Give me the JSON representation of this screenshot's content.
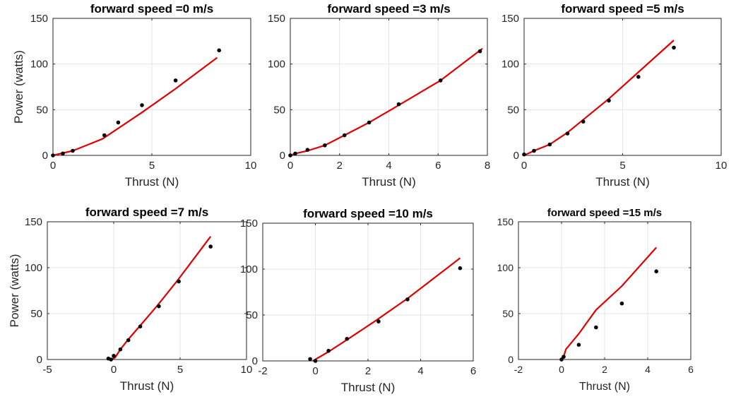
{
  "chart_data": [
    {
      "type": "line",
      "title": "forward speed  =0 m/s",
      "xlabel": "Thrust (N)",
      "ylabel": "Power (watts)",
      "xlim": [
        0,
        10
      ],
      "ylim": [
        0,
        150
      ],
      "xticks": [
        0,
        5,
        10
      ],
      "yticks": [
        0,
        50,
        100,
        150
      ],
      "grid": true,
      "series": [
        {
          "kind": "line",
          "color": "#e00000",
          "x": [
            0,
            1,
            2.5,
            4.5,
            6.2,
            8.3
          ],
          "y": [
            0,
            5,
            18,
            47,
            73,
            107
          ]
        },
        {
          "kind": "scatter",
          "color": "#000000",
          "x": [
            0,
            0.5,
            1,
            2.6,
            3.3,
            4.5,
            6.2,
            8.4
          ],
          "y": [
            0,
            2,
            5,
            22,
            36,
            55,
            82,
            115
          ]
        }
      ]
    },
    {
      "type": "line",
      "title": "forward speed  =3 m/s",
      "xlabel": "Thrust (N)",
      "ylabel": "",
      "xlim": [
        0,
        8
      ],
      "ylim": [
        0,
        150
      ],
      "xticks": [
        0,
        2,
        4,
        6,
        8
      ],
      "yticks": [
        0,
        50,
        100,
        150
      ],
      "grid": true,
      "series": [
        {
          "kind": "line",
          "color": "#e00000",
          "x": [
            0,
            0.2,
            0.7,
            1.4,
            2.2,
            3.2,
            4.4,
            6.1,
            7.8
          ],
          "y": [
            0,
            2,
            5,
            11,
            22,
            36,
            55,
            82,
            117
          ]
        },
        {
          "kind": "scatter",
          "color": "#000000",
          "x": [
            0,
            0.2,
            0.7,
            1.4,
            2.2,
            3.2,
            4.4,
            6.1,
            7.7
          ],
          "y": [
            0,
            2,
            6,
            11,
            22,
            36,
            56,
            82,
            114
          ]
        }
      ]
    },
    {
      "type": "line",
      "title": "forward speed  =5 m/s",
      "xlabel": "Thrust (N)",
      "ylabel": "",
      "xlim": [
        0,
        10
      ],
      "ylim": [
        0,
        150
      ],
      "xticks": [
        0,
        5,
        10
      ],
      "yticks": [
        0,
        50,
        100,
        150
      ],
      "grid": true,
      "series": [
        {
          "kind": "line",
          "color": "#e00000",
          "x": [
            0,
            0.5,
            1.3,
            2.2,
            4.3,
            7.6
          ],
          "y": [
            0,
            5,
            12,
            25,
            62,
            126
          ]
        },
        {
          "kind": "scatter",
          "color": "#000000",
          "x": [
            0,
            0.5,
            1.3,
            2.2,
            3,
            4.3,
            5.8,
            7.6
          ],
          "y": [
            1,
            5,
            12,
            24,
            37,
            60,
            86,
            118
          ]
        }
      ]
    },
    {
      "type": "line",
      "title": "forward speed  =7 m/s",
      "xlabel": "Thrust (N)",
      "ylabel": "Power (watts)",
      "xlim": [
        -5,
        10
      ],
      "ylim": [
        0,
        150
      ],
      "xticks": [
        -5,
        0,
        5,
        10
      ],
      "yticks": [
        0,
        50,
        100,
        150
      ],
      "grid": true,
      "series": [
        {
          "kind": "line",
          "color": "#e00000",
          "x": [
            -0.3,
            0.1,
            0.5,
            1.1,
            2,
            3.3,
            4.8,
            7.3
          ],
          "y": [
            0,
            2,
            11,
            22,
            37,
            59,
            86,
            134
          ]
        },
        {
          "kind": "scatter",
          "color": "#000000",
          "x": [
            -0.4,
            -0.2,
            0,
            0.5,
            1.1,
            2,
            3.4,
            4.9,
            7.3
          ],
          "y": [
            1,
            0,
            4,
            11,
            21,
            36,
            58,
            85,
            123
          ]
        }
      ]
    },
    {
      "type": "line",
      "title": "forward speed  =10 m/s",
      "xlabel": "Thrust (N)",
      "ylabel": "",
      "xlim": [
        -2,
        6
      ],
      "ylim": [
        0,
        150
      ],
      "xticks": [
        -2,
        0,
        2,
        4,
        6
      ],
      "yticks": [
        0,
        50,
        100,
        150
      ],
      "grid": true,
      "series": [
        {
          "kind": "line",
          "color": "#e00000",
          "x": [
            -0.1,
            0.5,
            1.2,
            2.3,
            3.5,
            5.5
          ],
          "y": [
            0,
            10,
            23,
            44,
            68,
            112
          ]
        },
        {
          "kind": "scatter",
          "color": "#000000",
          "x": [
            -0.2,
            0,
            0.5,
            1.2,
            2.4,
            3.5,
            5.5
          ],
          "y": [
            2,
            0,
            11,
            24,
            43,
            67,
            101
          ]
        }
      ]
    },
    {
      "type": "line",
      "title": "forward speed  =15 m/s",
      "xlabel": "Thrust (N)",
      "ylabel": "",
      "xlim": [
        -2,
        6
      ],
      "ylim": [
        0,
        150
      ],
      "xticks": [
        -2,
        0,
        2,
        4,
        6
      ],
      "yticks": [
        0,
        50,
        100,
        150
      ],
      "grid": true,
      "series": [
        {
          "kind": "line",
          "color": "#e00000",
          "x": [
            0,
            0.1,
            0.2,
            0.8,
            1.6,
            2.8,
            4.4
          ],
          "y": [
            0,
            3,
            11,
            28,
            54,
            80,
            122
          ]
        },
        {
          "kind": "scatter",
          "color": "#000000",
          "x": [
            0,
            0.1,
            0.8,
            1.6,
            2.8,
            4.4
          ],
          "y": [
            0,
            3,
            16,
            35,
            61,
            96
          ]
        }
      ]
    }
  ]
}
